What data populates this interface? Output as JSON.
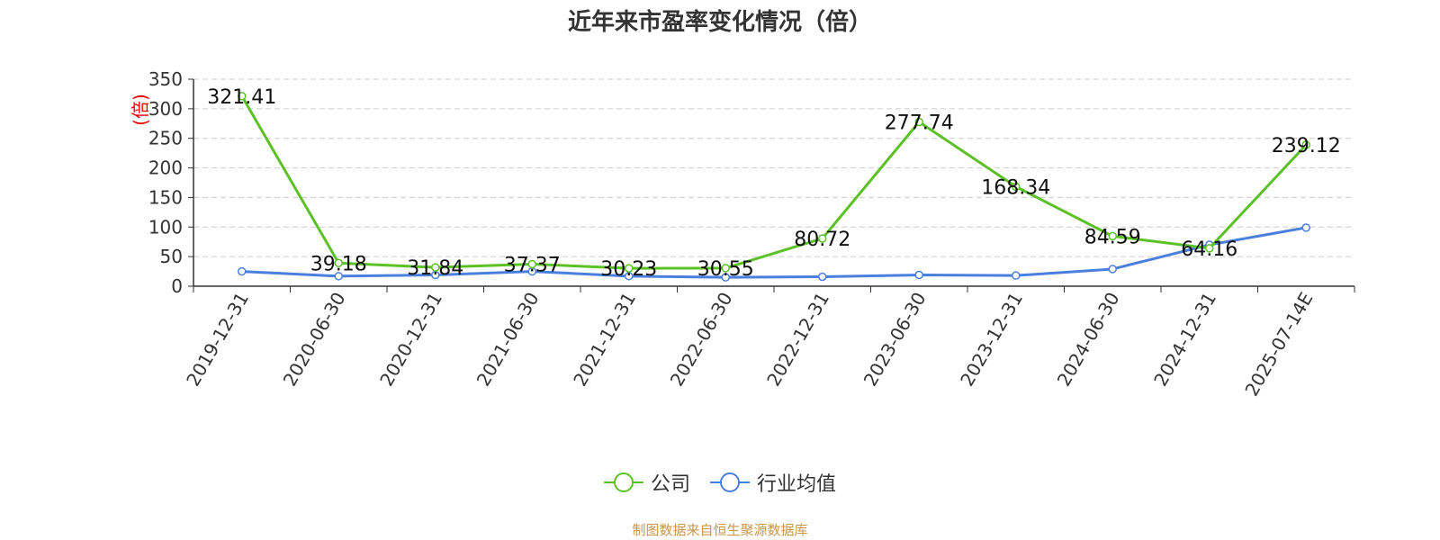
{
  "chart_data": {
    "type": "line",
    "title": "近年来市盈率变化情况（倍）",
    "ylabel": "(倍)",
    "ylim": [
      0,
      350
    ],
    "yticks": [
      0,
      50,
      100,
      150,
      200,
      250,
      300,
      350
    ],
    "grid": true,
    "legend_position": "bottom",
    "categories": [
      "2019-12-31",
      "2020-06-30",
      "2020-12-31",
      "2021-06-30",
      "2021-12-31",
      "2022-06-30",
      "2022-12-31",
      "2023-06-30",
      "2023-12-31",
      "2024-06-30",
      "2024-12-31",
      "2025-07-14E"
    ],
    "series": [
      {
        "name": "公司",
        "color": "#5cc126",
        "values": [
          321.41,
          39.18,
          31.84,
          37.37,
          30.23,
          30.55,
          80.72,
          277.74,
          168.34,
          84.59,
          64.16,
          239.12
        ],
        "labels": [
          "321.41",
          "39.18",
          "31.84",
          "37.37",
          "30.23",
          "30.55",
          "80.72",
          "277.74",
          "168.34",
          "84.59",
          "64.16",
          "239.12"
        ]
      },
      {
        "name": "行业均值",
        "color": "#4a7fdd",
        "values": [
          25,
          17,
          19,
          25,
          17,
          15,
          16,
          19,
          18,
          29,
          70,
          99
        ]
      }
    ]
  },
  "source_text": "制图数据来自恒生聚源数据库"
}
